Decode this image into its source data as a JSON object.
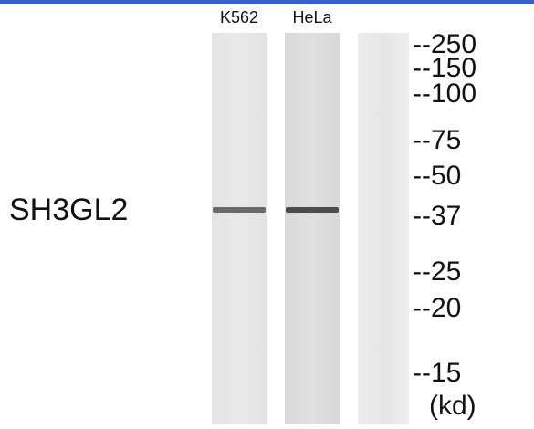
{
  "protein": "SH3GL2",
  "lanes": [
    {
      "label": "K562",
      "band": true
    },
    {
      "label": "HeLa",
      "band": true
    },
    {
      "label": null,
      "band": false
    }
  ],
  "markers": [
    "--250",
    "--150",
    "--100",
    "--75",
    "--50",
    "--37",
    "--25",
    "--20",
    "--15"
  ],
  "unit": "(kd)"
}
